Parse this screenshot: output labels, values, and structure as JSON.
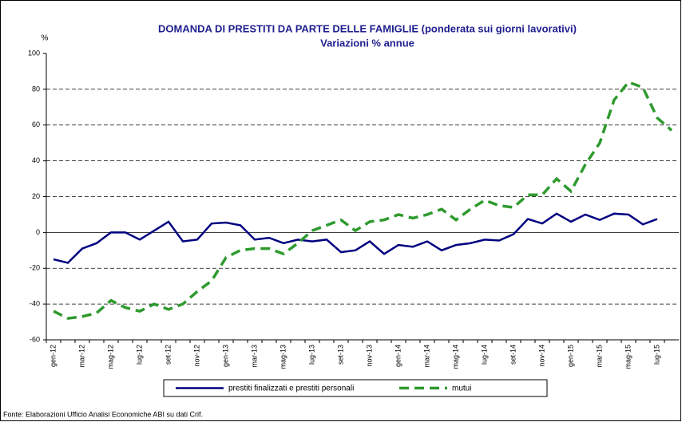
{
  "chart_data": {
    "type": "line",
    "title": "DOMANDA DI PRESTITI DA PARTE DELLE FAMIGLIE (ponderata sui giorni lavorativi)",
    "subtitle": "Variazioni % annue",
    "y_label": "%",
    "source": "Fonte: Elaborazioni Ufficio Analisi Economiche ABI su dati Crif.",
    "categories": [
      "gen-12",
      null,
      "mar-12",
      null,
      "mag-12",
      null,
      "lug-12",
      null,
      "set-12",
      null,
      "nov-12",
      null,
      "gen-13",
      null,
      "mar-13",
      null,
      "mag-13",
      null,
      "lug-13",
      null,
      "set-13",
      null,
      "nov-13",
      null,
      "gen-14",
      null,
      "mar-14",
      null,
      "mag-14",
      null,
      "lug-14",
      null,
      "set-14",
      null,
      "nov-14",
      null,
      "gen-15",
      null,
      "mar-15",
      null,
      "mag-15",
      null,
      "lug-15",
      null
    ],
    "series": [
      {
        "name": "prestiti finalizzati e prestiti personali",
        "color": "#000080",
        "dashed": false,
        "values": [
          -15,
          -17,
          -9,
          -6,
          0,
          0,
          -4,
          1,
          6,
          -5,
          -4,
          5,
          5.5,
          4,
          -4,
          -3,
          -6,
          -4,
          -5,
          -4,
          -11,
          -10,
          -5,
          -12,
          -7,
          -8,
          -5,
          -10,
          -7,
          -6,
          -4,
          -4.5,
          -1,
          7.5,
          5,
          10.5,
          6,
          10,
          7,
          10.5,
          10,
          4.5,
          7.5,
          null
        ]
      },
      {
        "name": "mutui",
        "color": "#2e9a2e",
        "dashed": true,
        "values": [
          -44,
          -48,
          -47,
          -45,
          -38,
          -42,
          -44,
          -40,
          -43,
          -40,
          -33,
          -27,
          -14,
          -10,
          -9,
          -9,
          -12,
          -6,
          1,
          4,
          7,
          1,
          6,
          7,
          10,
          8,
          10,
          13,
          7,
          13,
          18,
          15,
          14,
          21,
          21,
          30,
          23,
          38,
          50,
          74,
          84,
          81,
          64,
          57
        ]
      }
    ],
    "ylim": [
      -60,
      100
    ],
    "yticks": [
      -60,
      -40,
      -20,
      0,
      20,
      40,
      60,
      80,
      100
    ],
    "grid": true
  }
}
